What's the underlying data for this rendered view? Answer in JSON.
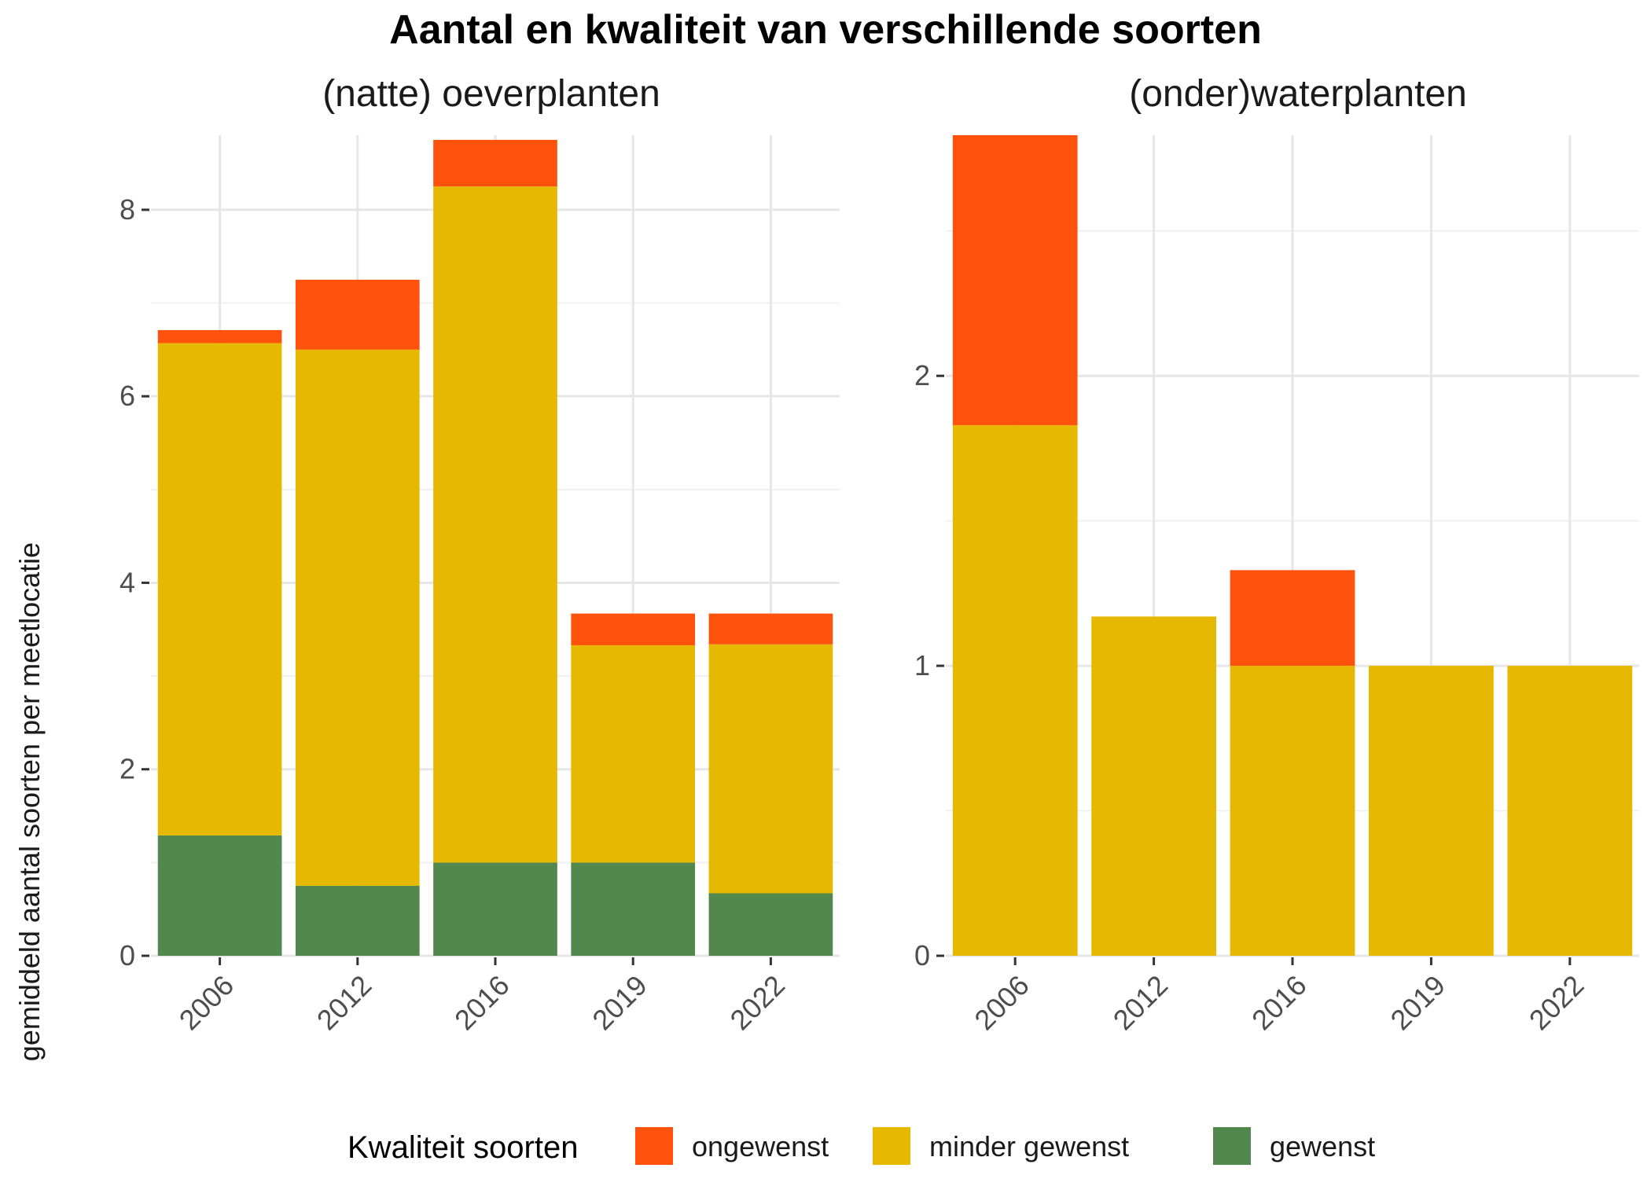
{
  "chart_data": [
    {
      "type": "bar",
      "stacked": true,
      "title": "(natte) oeverplanten",
      "categories": [
        "2006",
        "2012",
        "2016",
        "2019",
        "2022"
      ],
      "ylim": [
        0,
        8.8
      ],
      "yticks": [
        "0",
        "2",
        "4",
        "6",
        "8"
      ],
      "ytick_values": [
        0,
        2,
        4,
        6,
        8
      ],
      "grid": true,
      "series": [
        {
          "name": "gewenst",
          "values": [
            1.29,
            0.75,
            1.0,
            1.0,
            0.67
          ],
          "color": "#52884e"
        },
        {
          "name": "minder gewenst",
          "values": [
            5.28,
            5.75,
            7.25,
            2.33,
            2.67
          ],
          "color": "#e6b800"
        },
        {
          "name": "ongewenst",
          "values": [
            0.14,
            0.75,
            0.5,
            0.34,
            0.33
          ],
          "color": "#ff520d"
        }
      ]
    },
    {
      "type": "bar",
      "stacked": true,
      "title": "(onder)waterplanten",
      "categories": [
        "2006",
        "2012",
        "2016",
        "2019",
        "2022"
      ],
      "ylim": [
        0,
        2.83
      ],
      "yticks": [
        "0",
        "1",
        "2"
      ],
      "ytick_values": [
        0,
        1,
        2
      ],
      "grid": true,
      "series": [
        {
          "name": "gewenst",
          "values": [
            0,
            0,
            0,
            0,
            0
          ],
          "color": "#52884e"
        },
        {
          "name": "minder gewenst",
          "values": [
            1.83,
            1.17,
            1.0,
            1.0,
            1.0
          ],
          "color": "#e6b800"
        },
        {
          "name": "ongewenst",
          "values": [
            1.0,
            0,
            0.33,
            0,
            0
          ],
          "color": "#ff520d"
        }
      ]
    }
  ],
  "title": "Aantal en kwaliteit van verschillende soorten",
  "ylabel": "gemiddeld aantal soorten per meetlocatie",
  "legend": {
    "title": "Kwaliteit soorten",
    "position": "bottom",
    "items": [
      {
        "label": "ongewenst",
        "color": "#ff520d"
      },
      {
        "label": "minder gewenst",
        "color": "#e6b800"
      },
      {
        "label": "gewenst",
        "color": "#52884e"
      }
    ]
  }
}
